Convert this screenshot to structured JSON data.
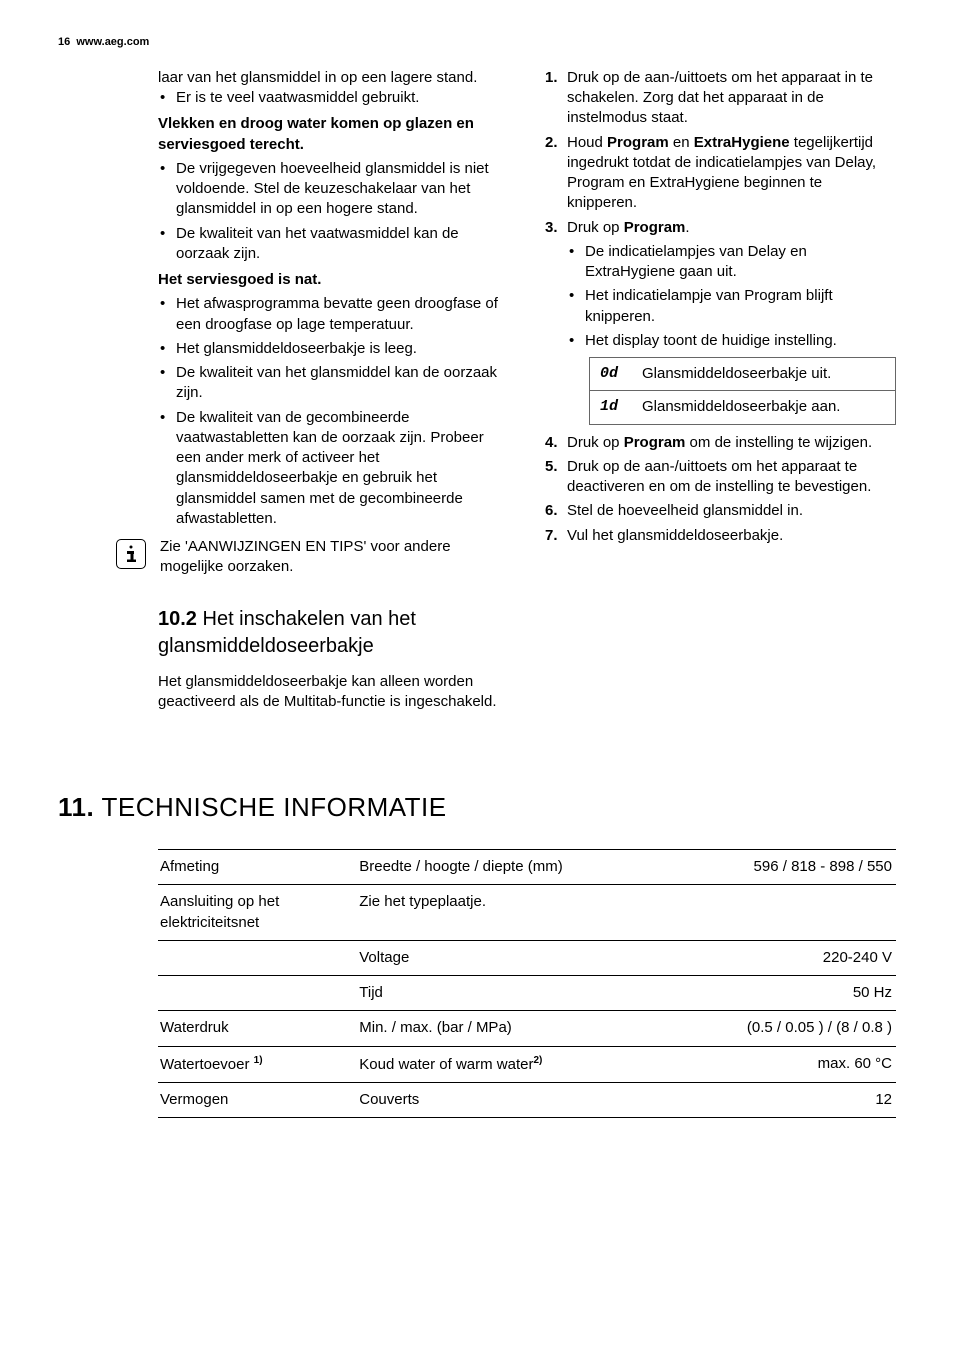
{
  "header": {
    "page_num": "16",
    "url": "www.aeg.com"
  },
  "left": {
    "p_intro": "laar van het glansmiddel in op een lagere stand.",
    "b1": "Er is te veel vaatwasmiddel gebruikt.",
    "h1": "Vlekken en droog water komen op glazen en serviesgoed terecht.",
    "b2": "De vrijgegeven hoeveelheid glansmiddel is niet voldoende. Stel de keuzeschakelaar van het glansmiddel in op een hogere stand.",
    "b3": "De kwaliteit van het vaatwasmiddel kan de oorzaak zijn.",
    "h2": "Het serviesgoed is nat.",
    "b4": "Het afwasprogramma bevatte geen droogfase of een droogfase op lage temperatuur.",
    "b5": "Het glansmiddeldoseerbakje is leeg.",
    "b6": "De kwaliteit van het glansmiddel kan de oorzaak zijn.",
    "b7": "De kwaliteit van de gecombineerde vaatwastabletten kan de oorzaak zijn. Probeer een ander merk of activeer het glansmiddeldoseerbakje en gebruik het glansmiddel samen met de gecombineerde afwastabletten.",
    "info": "Zie 'AANWIJZINGEN EN TIPS' voor andere mogelijke oorzaken.",
    "sec_n": "10.2",
    "sec_t": "Het inschakelen van het glansmiddeldoseerbakje",
    "sec_p": "Het glansmiddeldoseerbakje kan alleen worden geactiveerd als de Multitab-functie is ingeschakeld."
  },
  "right": {
    "s1": "Druk op de aan-/uittoets om het apparaat in te schakelen. Zorg dat het apparaat in de instelmodus staat.",
    "s2a": "Houd ",
    "s2b": "Program",
    "s2c": " en ",
    "s2d": "ExtraHygiene",
    "s2e": " tegelijkertijd ingedrukt totdat de indicatielampjes van Delay, Program en ExtraHygiene beginnen te knipperen.",
    "s3a": "Druk op ",
    "s3b": "Program",
    "s3c": ".",
    "s3_b1": "De indicatielampjes van Delay en ExtraHygiene gaan uit.",
    "s3_b2": "Het indicatielampje van Program blijft knipperen.",
    "s3_b3": "Het display toont de huidige instelling.",
    "disp": [
      {
        "code": "0d",
        "desc": "Glansmiddeldoseerbakje uit."
      },
      {
        "code": "1d",
        "desc": "Glansmiddeldoseerbakje aan."
      }
    ],
    "s4a": "Druk op ",
    "s4b": "Program",
    "s4c": " om de instelling te wijzigen.",
    "s5": "Druk op de aan-/uittoets om het apparaat te deactiveren en om de instelling te bevestigen.",
    "s6": "Stel de hoeveelheid glansmiddel in.",
    "s7": "Vul het glansmiddeldoseerbakje."
  },
  "chapter": {
    "n": "11.",
    "t": "TECHNISCHE INFORMATIE"
  },
  "table": {
    "rows": [
      {
        "c1": "Afmeting",
        "c2": "Breedte / hoogte / diepte (mm)",
        "c3": "596 / 818 - 898 / 550"
      },
      {
        "c1": "Aansluiting op het elektriciteitsnet",
        "c2": "Zie het typeplaatje.",
        "c3": ""
      },
      {
        "c1": "",
        "c2": "Voltage",
        "c3": "220-240 V"
      },
      {
        "c1": "",
        "c2": "Tijd",
        "c3": "50 Hz"
      },
      {
        "c1": "Waterdruk",
        "c2": "Min. / max. (bar / MPa)",
        "c3": "(0.5 / 0.05 ) / (8 / 0.8 )"
      },
      {
        "c1": "Watertoevoer",
        "c1sup": "1)",
        "c2": "Koud water of warm water",
        "c2sup": "2)",
        "c3": "max. 60 °C"
      },
      {
        "c1": "Vermogen",
        "c2": "Couverts",
        "c3": "12"
      }
    ]
  }
}
